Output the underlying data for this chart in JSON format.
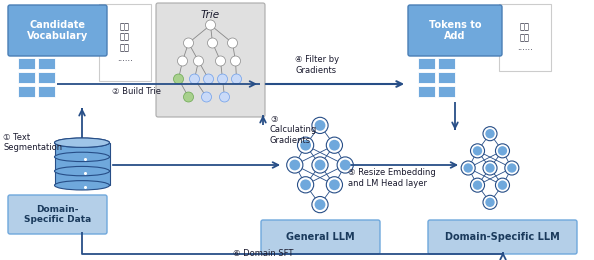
{
  "bg_color": "#ffffff",
  "blue": "#6fa8dc",
  "light_blue": "#9fc5e8",
  "light_blue2": "#b4cfe8",
  "trie_bg": "#d9d9d9",
  "arrow_color": "#274e87",
  "dark": "#1a1a2e",
  "node_blue": "#6fa8dc",
  "node_edge": "#274e87",
  "node_outer": "#ffffff",
  "candidate_vocab_label": "Candidate\nVocabulary",
  "tokens_to_add_label": "Tokens to\nAdd",
  "domain_specific_data_label": "Domain-\nSpecific Data",
  "general_llm_label": "General LLM",
  "domain_specific_llm_label": "Domain-Specific LLM",
  "chinese_text1": "降压\n血糖\n染上\n......",
  "chinese_text2": "降压\n血糖\n......",
  "label_1": "① Text\nSegmentation",
  "label_2": "② Build Trie",
  "label_3": "③\nCalculating\nGradients",
  "label_4": "④ Filter by\nGradients",
  "label_5": "⑤ Resize Embedding\nand LM Head layer",
  "label_6": "⑥ Domain SFT"
}
